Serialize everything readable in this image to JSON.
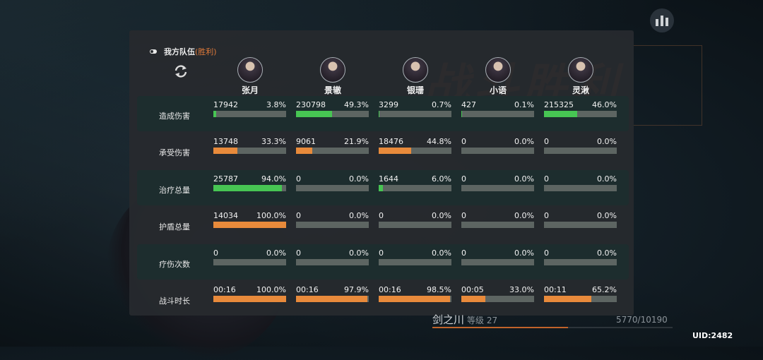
{
  "background": {
    "victory_text": "战斗胜利"
  },
  "panel": {
    "team_label": "我方队伍",
    "result_label": "(胜利)"
  },
  "characters": [
    {
      "name": "张月"
    },
    {
      "name": "景辙"
    },
    {
      "name": "银珊"
    },
    {
      "name": "小语"
    },
    {
      "name": "灵湫"
    }
  ],
  "stats": [
    {
      "label": "造成伤害",
      "color": "#47c553",
      "values": [
        {
          "value": "17942",
          "percent": "3.8%",
          "fill": 0.038
        },
        {
          "value": "230798",
          "percent": "49.3%",
          "fill": 0.493
        },
        {
          "value": "3299",
          "percent": "0.7%",
          "fill": 0.007
        },
        {
          "value": "427",
          "percent": "0.1%",
          "fill": 0.001
        },
        {
          "value": "215325",
          "percent": "46.0%",
          "fill": 0.46
        }
      ]
    },
    {
      "label": "承受伤害",
      "color": "#e88a3b",
      "values": [
        {
          "value": "13748",
          "percent": "33.3%",
          "fill": 0.333
        },
        {
          "value": "9061",
          "percent": "21.9%",
          "fill": 0.219
        },
        {
          "value": "18476",
          "percent": "44.8%",
          "fill": 0.448
        },
        {
          "value": "0",
          "percent": "0.0%",
          "fill": 0
        },
        {
          "value": "0",
          "percent": "0.0%",
          "fill": 0
        }
      ]
    },
    {
      "label": "治疗总量",
      "color": "#47c553",
      "values": [
        {
          "value": "25787",
          "percent": "94.0%",
          "fill": 0.94
        },
        {
          "value": "0",
          "percent": "0.0%",
          "fill": 0
        },
        {
          "value": "1644",
          "percent": "6.0%",
          "fill": 0.06
        },
        {
          "value": "0",
          "percent": "0.0%",
          "fill": 0
        },
        {
          "value": "0",
          "percent": "0.0%",
          "fill": 0
        }
      ]
    },
    {
      "label": "护盾总量",
      "color": "#e88a3b",
      "values": [
        {
          "value": "14034",
          "percent": "100.0%",
          "fill": 1.0
        },
        {
          "value": "0",
          "percent": "0.0%",
          "fill": 0
        },
        {
          "value": "0",
          "percent": "0.0%",
          "fill": 0
        },
        {
          "value": "0",
          "percent": "0.0%",
          "fill": 0
        },
        {
          "value": "0",
          "percent": "0.0%",
          "fill": 0
        }
      ]
    },
    {
      "label": "疗伤次数",
      "color": "#47c553",
      "values": [
        {
          "value": "0",
          "percent": "0.0%",
          "fill": 0
        },
        {
          "value": "0",
          "percent": "0.0%",
          "fill": 0
        },
        {
          "value": "0",
          "percent": "0.0%",
          "fill": 0
        },
        {
          "value": "0",
          "percent": "0.0%",
          "fill": 0
        },
        {
          "value": "0",
          "percent": "0.0%",
          "fill": 0
        }
      ]
    },
    {
      "label": "战斗时长",
      "color": "#e88a3b",
      "values": [
        {
          "value": "00:16",
          "percent": "100.0%",
          "fill": 1.0
        },
        {
          "value": "00:16",
          "percent": "97.9%",
          "fill": 0.979
        },
        {
          "value": "00:16",
          "percent": "98.5%",
          "fill": 0.985
        },
        {
          "value": "00:05",
          "percent": "33.0%",
          "fill": 0.33
        },
        {
          "value": "00:11",
          "percent": "65.2%",
          "fill": 0.652
        }
      ]
    }
  ],
  "player": {
    "name": "剑之川",
    "level_label": "等级 27",
    "exp_text": "5770/10190",
    "exp_fill": 0.566
  },
  "uid": "UID:2482"
}
